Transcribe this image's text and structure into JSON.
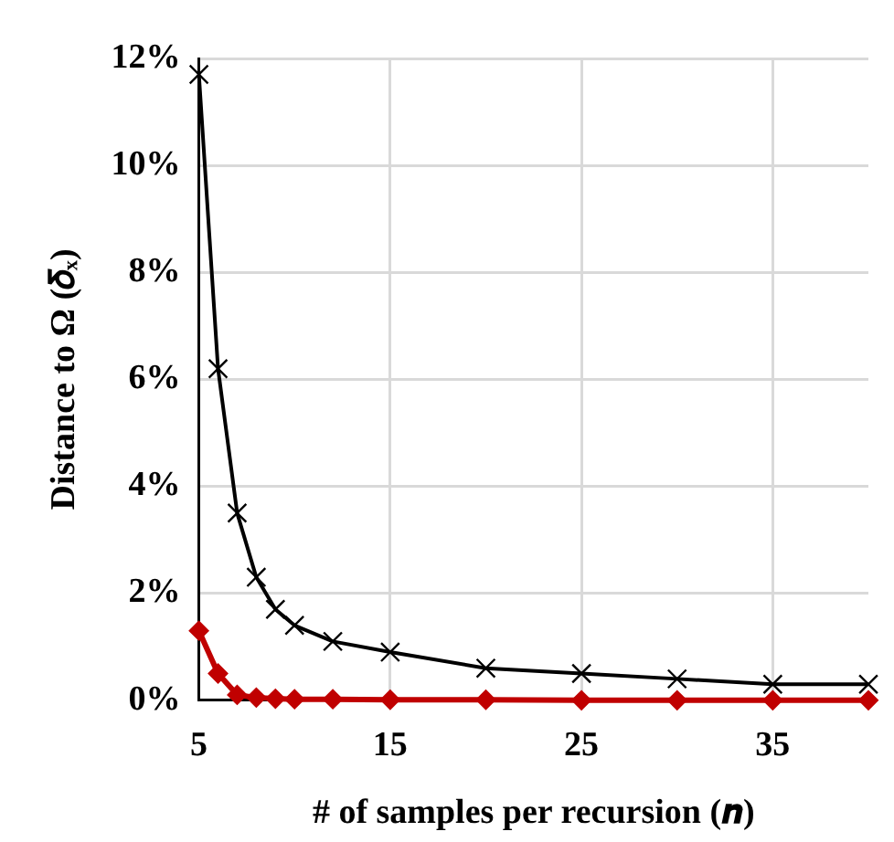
{
  "chart_data": {
    "type": "line",
    "xlabel": "# of samples per recursion (𝒏)",
    "ylabel": "Distance to Ω (𝛿ₓ)",
    "x": [
      5,
      6,
      7,
      8,
      9,
      10,
      12,
      15,
      20,
      25,
      30,
      35,
      40
    ],
    "series": [
      {
        "color": "#000000",
        "marker": "cross",
        "values": [
          11.7,
          6.2,
          3.5,
          2.3,
          1.7,
          1.4,
          1.1,
          0.9,
          0.6,
          0.5,
          0.4,
          0.3,
          0.3
        ]
      },
      {
        "color": "#c00000",
        "marker": "diamond",
        "values": [
          1.3,
          0.5,
          0.1,
          0.05,
          0.03,
          0.02,
          0.02,
          0.01,
          0.01,
          0,
          0,
          0,
          0
        ]
      }
    ],
    "xlim": [
      5,
      40
    ],
    "xticks": [
      5,
      15,
      25,
      35
    ],
    "ylim": [
      0,
      12
    ],
    "yticks": [
      {
        "value": 0,
        "label": "0%"
      },
      {
        "value": 2,
        "label": "2%"
      },
      {
        "value": 4,
        "label": "4%"
      },
      {
        "value": 6,
        "label": "6%"
      },
      {
        "value": 8,
        "label": "8%"
      },
      {
        "value": 10,
        "label": "10%"
      },
      {
        "value": 12,
        "label": "12%"
      }
    ],
    "grid": true
  }
}
